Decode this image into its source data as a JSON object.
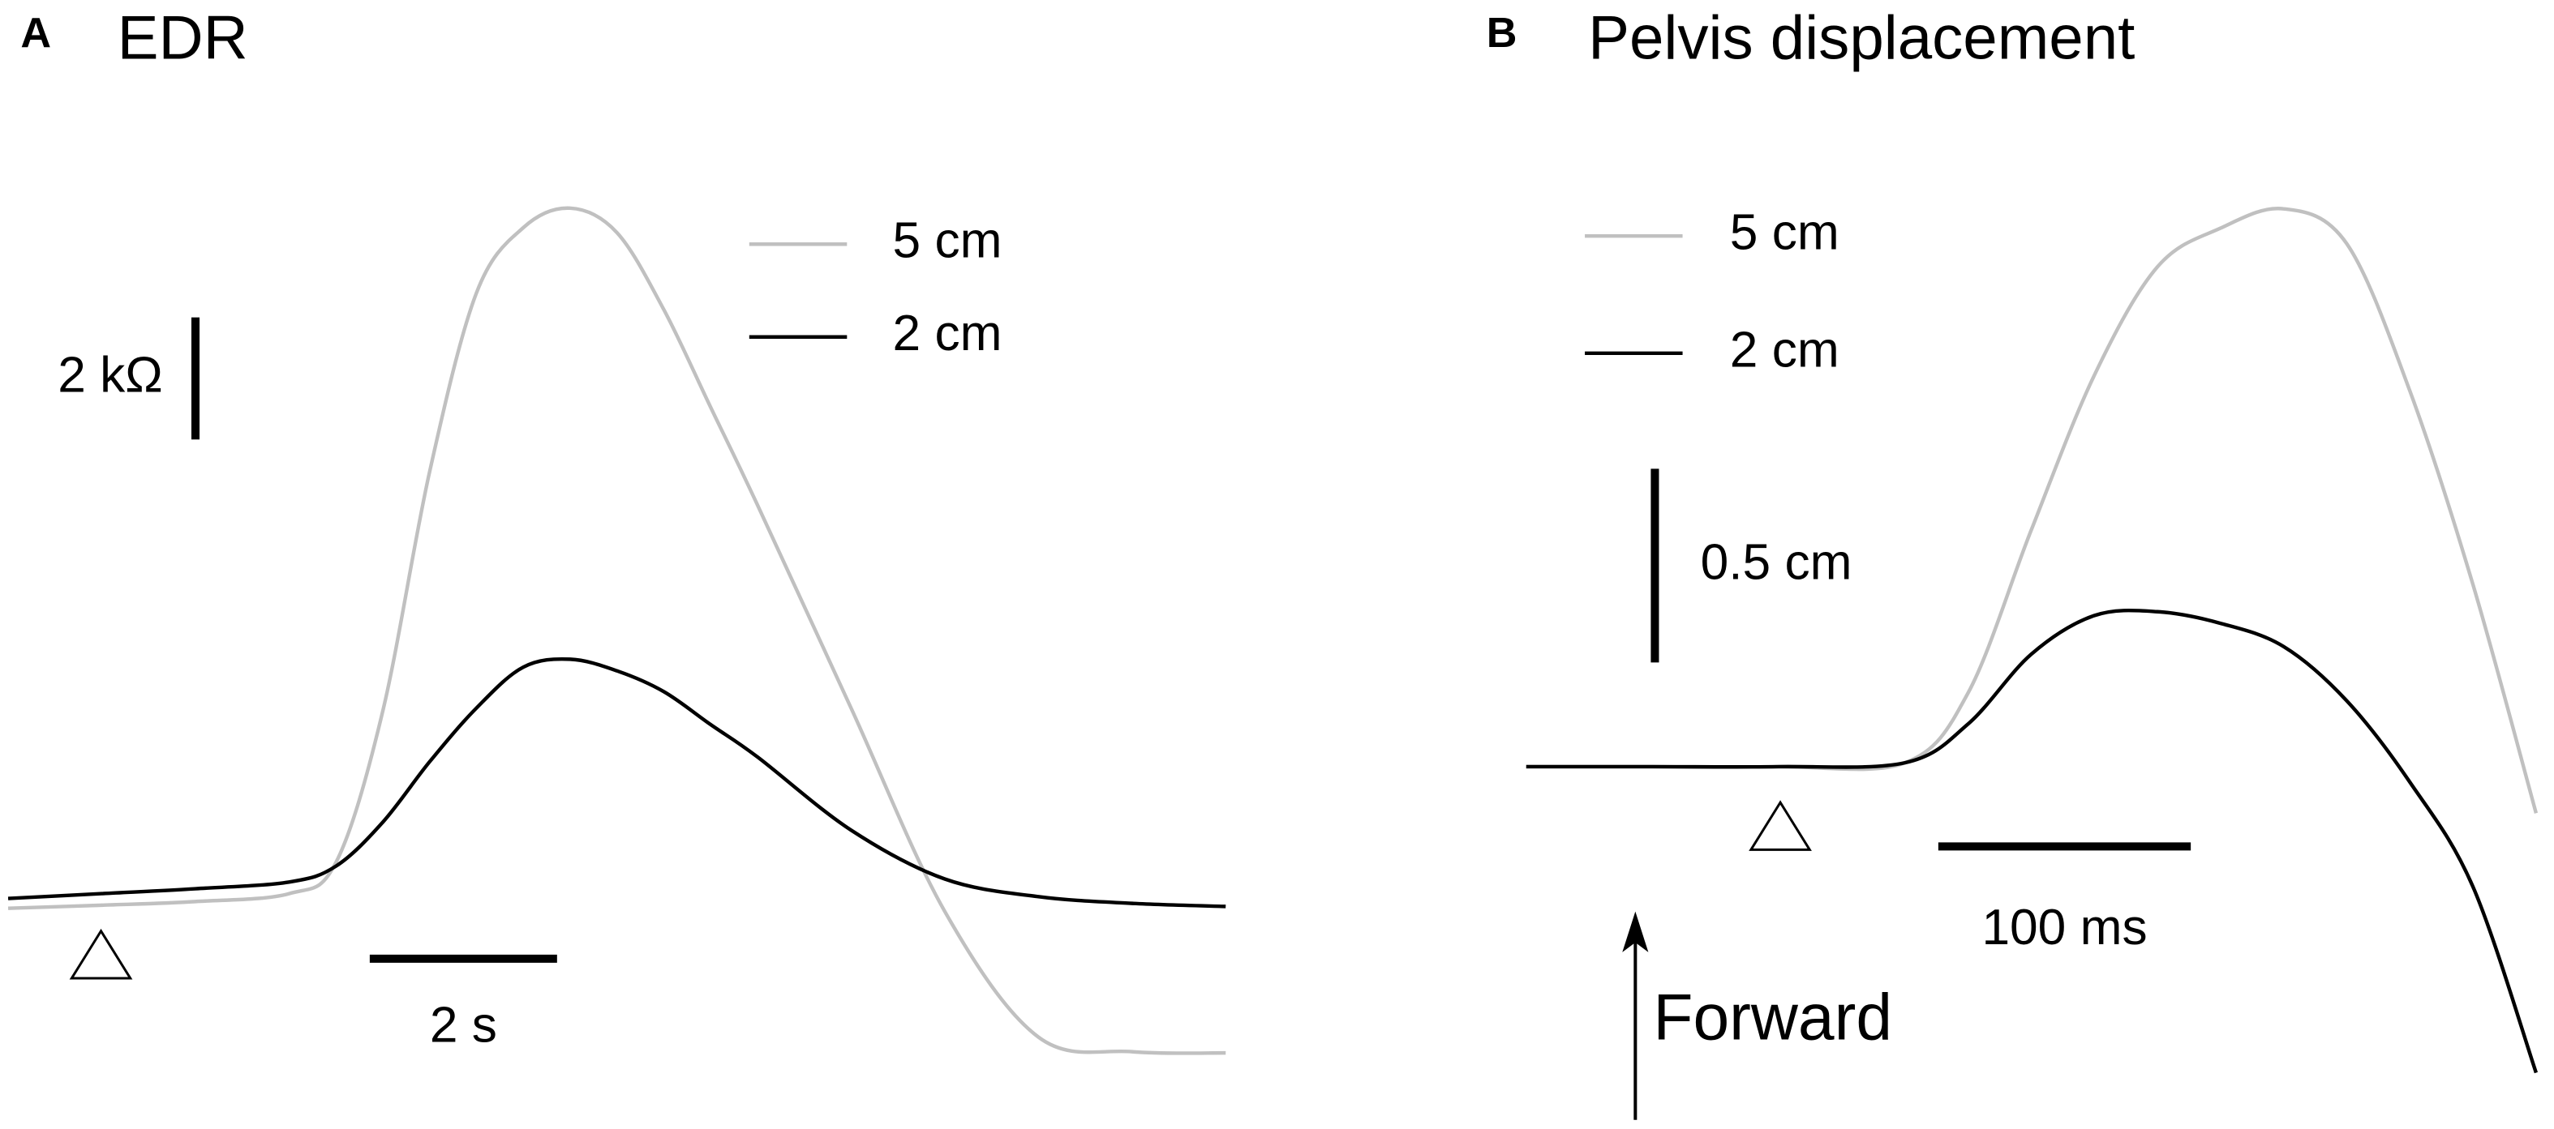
{
  "chart_data": [
    {
      "type": "line",
      "panel": "A",
      "title": "EDR",
      "x": [
        0,
        1,
        2,
        3,
        3.5,
        4,
        4.5,
        5,
        5.5,
        6,
        6.5,
        7,
        7.5,
        8,
        9,
        10,
        11,
        12,
        13
      ],
      "series": [
        {
          "name": "5 cm",
          "color": "#c0c0c0",
          "values": [
            -0.16,
            -0.11,
            -0.05,
            0.08,
            0.59,
            3.07,
            6.99,
            9.92,
            10.99,
            11.31,
            10.91,
            9.65,
            8.05,
            6.45,
            3.12,
            -0.21,
            -2.27,
            -2.51,
            -2.53
          ]
        },
        {
          "name": "2 cm",
          "color": "#000000",
          "values": [
            0,
            0.08,
            0.16,
            0.27,
            0.53,
            1.25,
            2.24,
            3.12,
            3.79,
            3.92,
            3.73,
            3.39,
            2.85,
            2.32,
            1.12,
            0.32,
            0.03,
            -0.08,
            -0.13
          ]
        }
      ],
      "xlim": [
        0,
        13
      ],
      "ylim": [
        -3,
        12
      ],
      "scalebars": [
        {
          "axis": "y",
          "value": 2,
          "label": "2 kΩ"
        },
        {
          "axis": "x",
          "value": 2,
          "label": "2 s"
        }
      ]
    },
    {
      "type": "line",
      "panel": "B",
      "title": "Pelvis displacement",
      "x": [
        0,
        50,
        100,
        150,
        175,
        200,
        225,
        250,
        275,
        300,
        325,
        350,
        375,
        400
      ],
      "series": [
        {
          "name": "5 cm",
          "color": "#c0c0c0",
          "values": [
            0,
            0,
            0,
            0.01,
            0.19,
            0.61,
            1.01,
            1.29,
            1.39,
            1.44,
            1.35,
            0.97,
            0.47,
            -0.12
          ]
        },
        {
          "name": "2 cm",
          "color": "#000000",
          "values": [
            0,
            0,
            0,
            0.01,
            0.11,
            0.29,
            0.39,
            0.4,
            0.37,
            0.31,
            0.17,
            -0.04,
            -0.31,
            -0.79
          ]
        }
      ],
      "xlim": [
        0,
        400
      ],
      "ylim": [
        -0.9,
        1.5
      ],
      "scalebars": [
        {
          "axis": "y",
          "value": 0.5,
          "label": "0.5 cm"
        },
        {
          "axis": "x",
          "value": 100,
          "label": "100 ms"
        }
      ],
      "annotation": "Forward"
    }
  ]
}
